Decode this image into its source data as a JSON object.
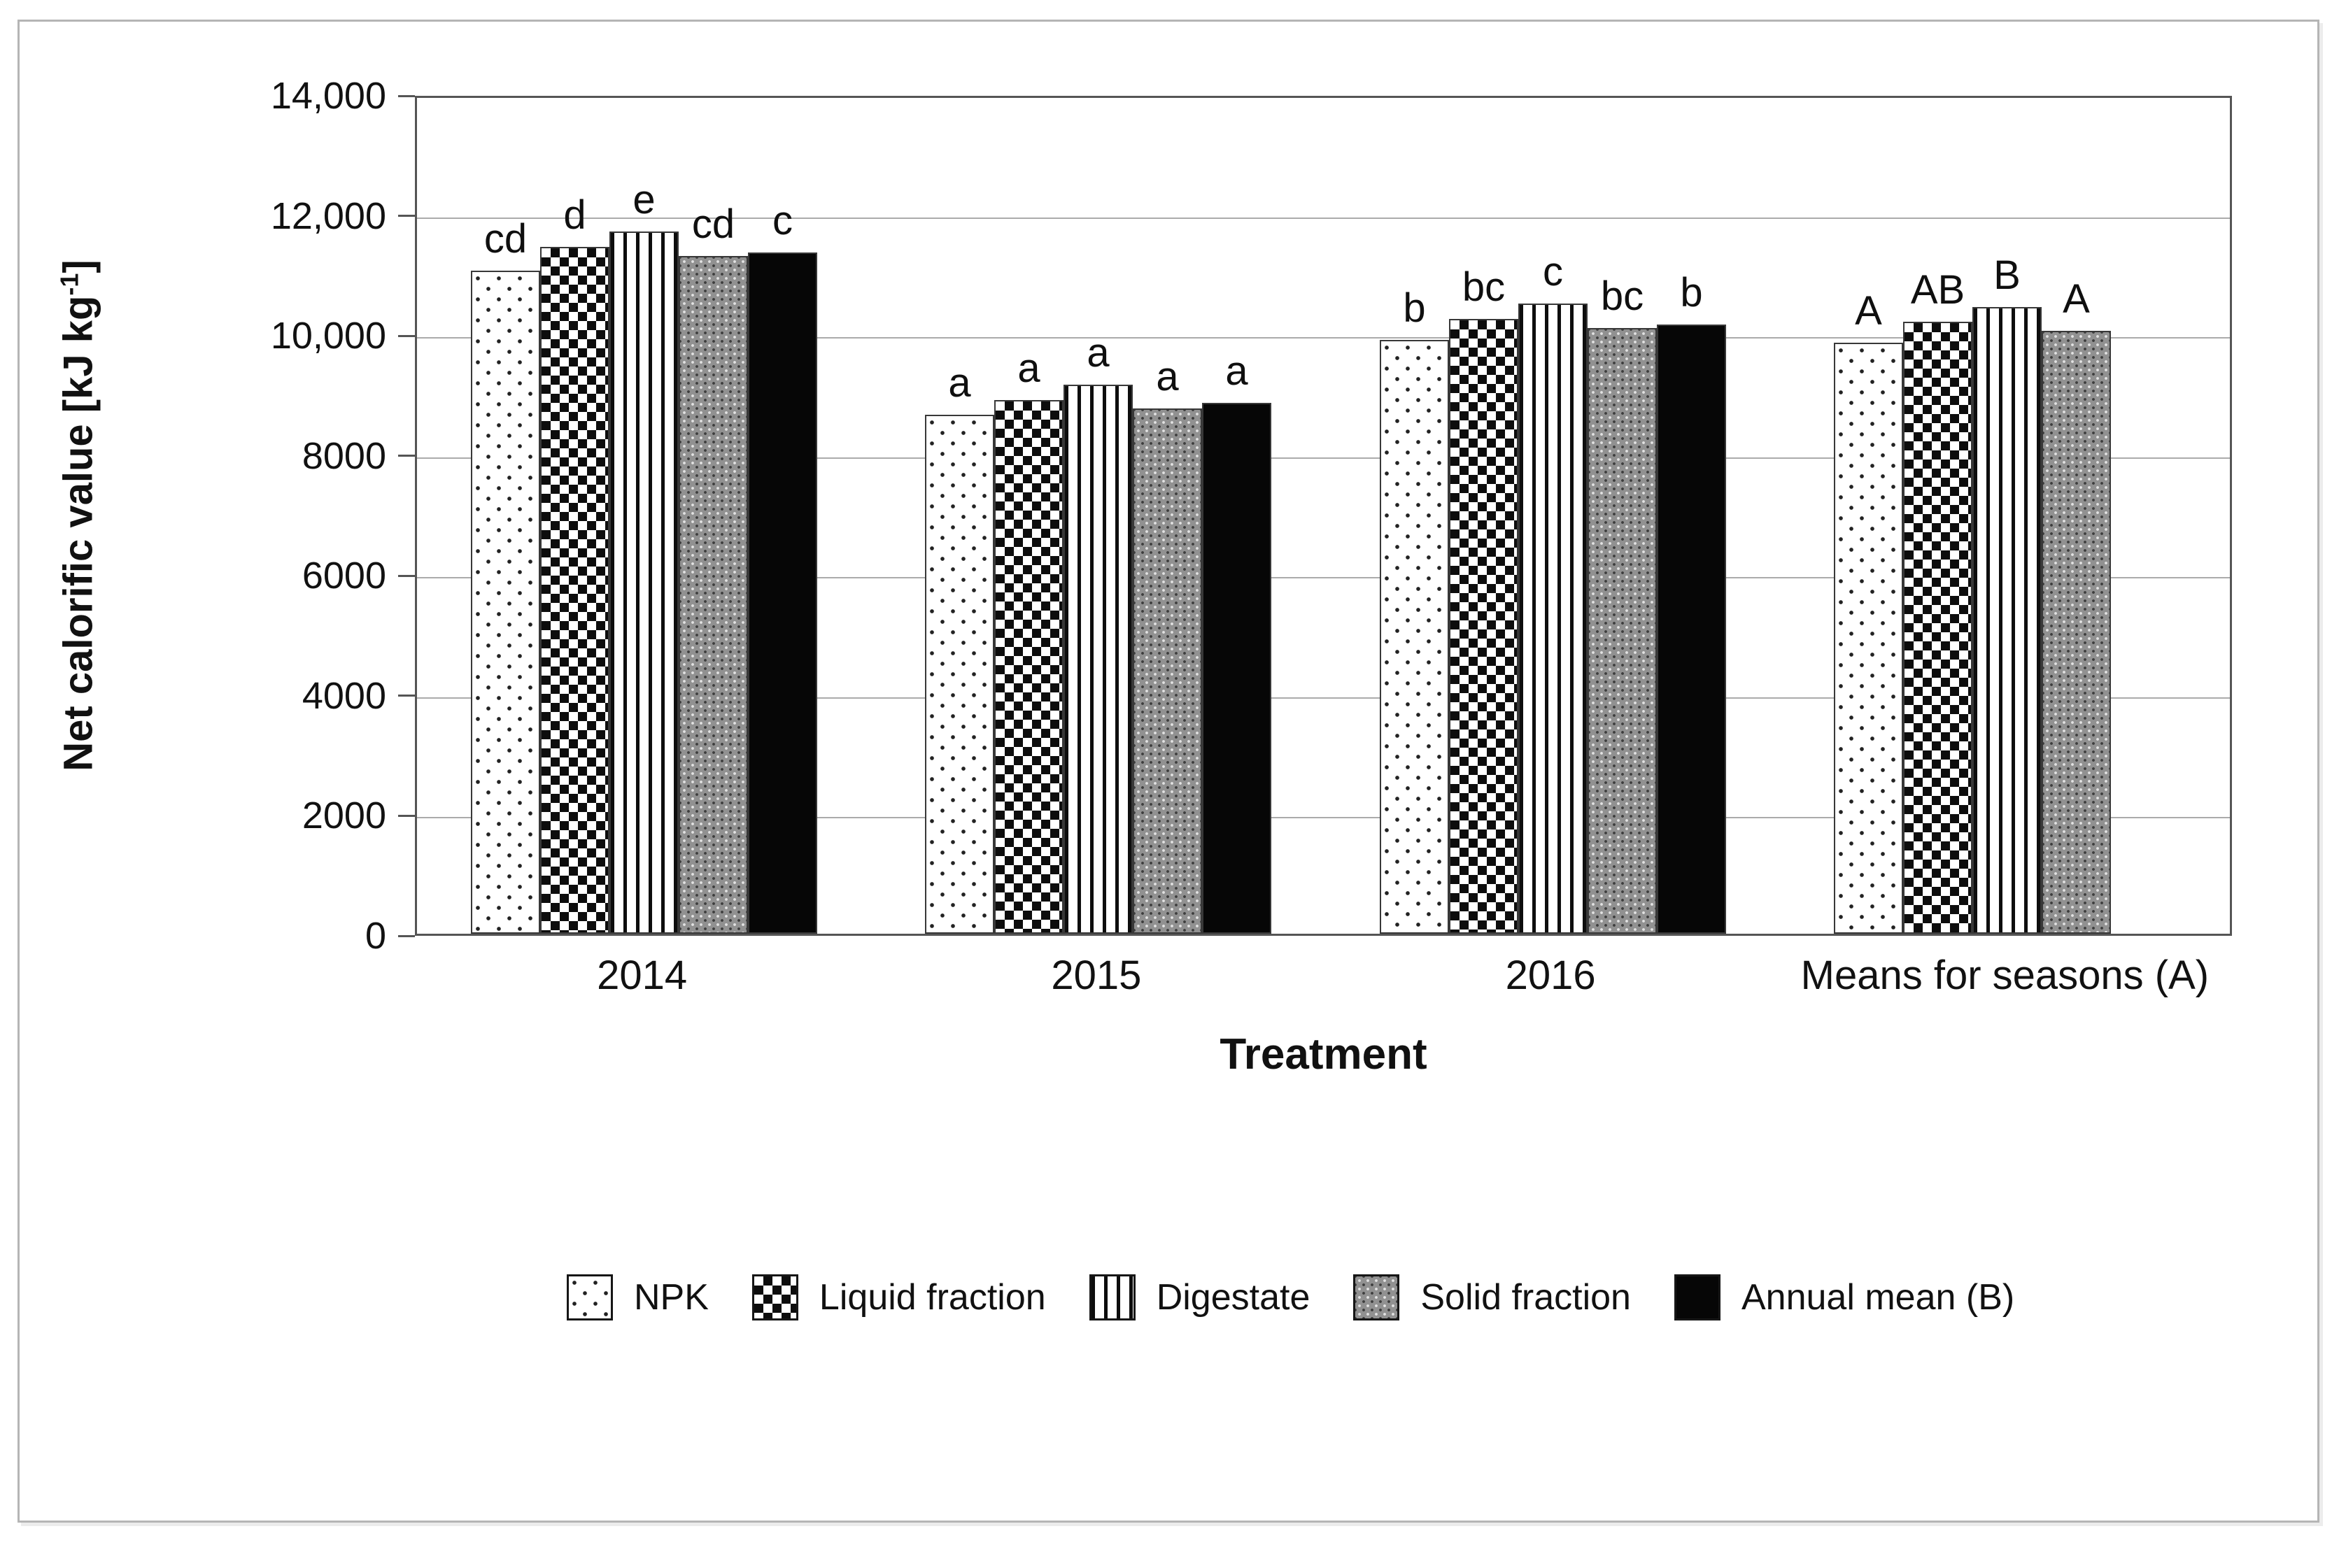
{
  "colors": {
    "background": "#ffffff",
    "figure_border": "#b5b5b5",
    "plot_frame": "#555555",
    "gridline": "#ababab",
    "text": "#111111",
    "bar_black": "#060606",
    "bar_gray": "#919191"
  },
  "chart_data": {
    "type": "bar",
    "title": "",
    "xlabel": "Treatment",
    "ylabel": "Net calorific value [kJ kg⁻¹]",
    "ylabel_parts": {
      "pre": "Net calorific value [kJ kg",
      "sup": "-1",
      "post": "]"
    },
    "ylim": [
      0,
      14000
    ],
    "ytick_values": [
      0,
      2000,
      4000,
      6000,
      8000,
      10000,
      12000,
      14000
    ],
    "ytick_labels": [
      "0",
      "2000",
      "4000",
      "6000",
      "8000",
      "10,000",
      "12,000",
      "14,000"
    ],
    "grid": "horizontal gridlines on",
    "legend_position": "bottom",
    "categories": [
      "2014",
      "2015",
      "2016",
      "Means for seasons (A)"
    ],
    "series": [
      {
        "name": "NPK",
        "pattern": "dotted-white",
        "values": [
          11050,
          8650,
          9900,
          9850
        ],
        "sig_letters": [
          "cd",
          "a",
          "b",
          "A"
        ]
      },
      {
        "name": "Liquid fraction",
        "pattern": "checkerboard",
        "values": [
          11450,
          8900,
          10250,
          10200
        ],
        "sig_letters": [
          "d",
          "a",
          "bc",
          "AB"
        ]
      },
      {
        "name": "Digestate",
        "pattern": "vertical-stripes",
        "values": [
          11700,
          9150,
          10500,
          10450
        ],
        "sig_letters": [
          "e",
          "a",
          "c",
          "B"
        ]
      },
      {
        "name": "Solid fraction",
        "pattern": "gray-weave",
        "values": [
          11300,
          8750,
          10100,
          10050
        ],
        "sig_letters": [
          "cd",
          "a",
          "bc",
          "A"
        ]
      },
      {
        "name": "Annual mean (B)",
        "pattern": "solid-black",
        "values": [
          11350,
          8850,
          10150,
          null
        ],
        "sig_letters": [
          "c",
          "a",
          "b",
          null
        ]
      }
    ]
  }
}
